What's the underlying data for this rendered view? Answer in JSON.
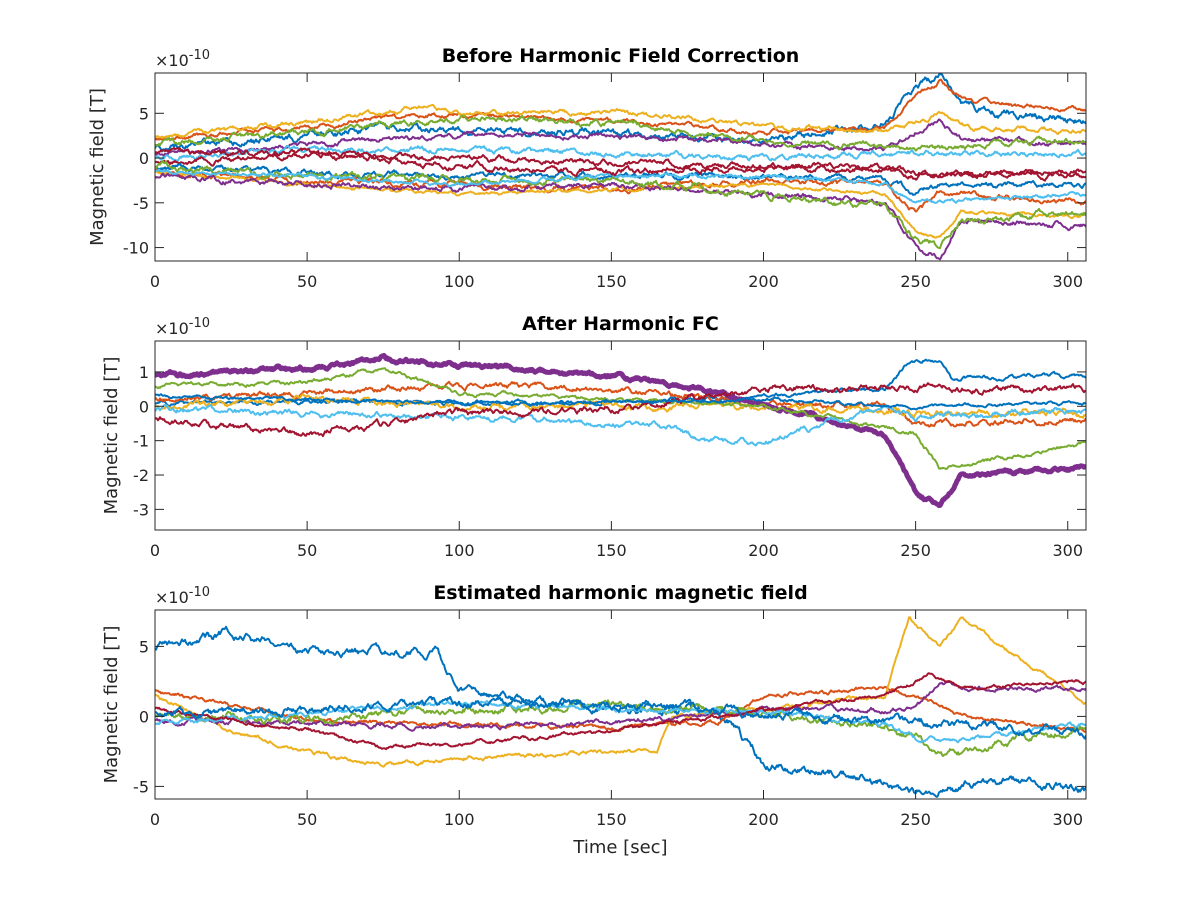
{
  "chart_data": [
    {
      "type": "line",
      "title": "Before Harmonic Field Correction",
      "xlabel": "",
      "ylabel": "Magnetic field [T]",
      "exponent_label": "×10",
      "exponent_power": "-10",
      "xlim": [
        0,
        306
      ],
      "ylim": [
        -11.5,
        9.5
      ],
      "xticks": [
        0,
        50,
        100,
        150,
        200,
        250,
        300
      ],
      "yticks": [
        -10,
        -5,
        0,
        5
      ],
      "grid": false,
      "noise": 0.35,
      "colors": [
        "#0072BD",
        "#D95319",
        "#EDB120",
        "#7E2F8E",
        "#77AC30",
        "#4DBEEE",
        "#A2142F"
      ],
      "series": [
        {
          "x": [
            0,
            50,
            75,
            100,
            150,
            180,
            200,
            240,
            250,
            258,
            265,
            280,
            306
          ],
          "values": [
            1,
            2.5,
            3.5,
            3.2,
            2.8,
            2.2,
            2,
            4,
            8,
            9,
            6,
            5,
            4
          ]
        },
        {
          "x": [
            0,
            50,
            75,
            100,
            150,
            180,
            200,
            240,
            250,
            258,
            265,
            280,
            306
          ],
          "values": [
            2,
            3.5,
            4.5,
            4.8,
            4.2,
            3.5,
            2.8,
            3.5,
            7,
            8.5,
            6.5,
            6,
            5.5
          ]
        },
        {
          "x": [
            0,
            50,
            90,
            100,
            150,
            180,
            200,
            240,
            250,
            258,
            265,
            306
          ],
          "values": [
            2.3,
            4,
            6,
            5,
            5.2,
            4.2,
            3.5,
            3,
            4,
            5,
            3.5,
            3
          ]
        },
        {
          "x": [
            0,
            50,
            100,
            150,
            200,
            240,
            250,
            258,
            265,
            306
          ],
          "values": [
            0.5,
            1.5,
            2.5,
            2.5,
            1.5,
            1,
            3,
            4,
            2,
            1.5
          ]
        },
        {
          "x": [
            0,
            50,
            100,
            150,
            200,
            240,
            250,
            306
          ],
          "values": [
            1.5,
            3,
            4.5,
            4,
            2,
            1.5,
            1,
            2
          ]
        },
        {
          "x": [
            0,
            50,
            100,
            150,
            200,
            240,
            250,
            306
          ],
          "values": [
            0,
            1,
            1,
            0.5,
            0,
            0.5,
            0.5,
            0.5
          ]
        },
        {
          "x": [
            0,
            50,
            100,
            150,
            200,
            250,
            306
          ],
          "values": [
            -0.5,
            0.5,
            0,
            -0.5,
            -1,
            -1.5,
            -2
          ]
        },
        {
          "x": [
            0,
            50,
            100,
            150,
            200,
            240,
            250,
            258,
            306
          ],
          "values": [
            -1,
            -1.5,
            -2,
            -2,
            -2,
            -2.5,
            -4,
            -3,
            -3
          ]
        },
        {
          "x": [
            0,
            50,
            100,
            150,
            200,
            240,
            250,
            258,
            306
          ],
          "values": [
            -1.5,
            -2.5,
            -3,
            -3.5,
            -2.5,
            -3,
            -6,
            -4,
            -5
          ]
        },
        {
          "x": [
            0,
            50,
            100,
            150,
            200,
            240,
            250,
            258,
            265,
            306
          ],
          "values": [
            -1.5,
            -3,
            -4,
            -3.5,
            -3,
            -4,
            -8,
            -9,
            -6,
            -6.5
          ]
        },
        {
          "x": [
            0,
            50,
            100,
            150,
            200,
            240,
            250,
            258,
            265,
            306
          ],
          "values": [
            -2,
            -3,
            -3.5,
            -3,
            -4,
            -5,
            -10,
            -11,
            -7,
            -7.5
          ]
        },
        {
          "x": [
            0,
            50,
            100,
            150,
            200,
            240,
            250,
            258,
            265,
            306
          ],
          "values": [
            -1,
            -2,
            -2.5,
            -2.5,
            -4,
            -5.5,
            -9,
            -10,
            -7,
            -6
          ]
        },
        {
          "x": [
            0,
            50,
            100,
            150,
            200,
            240,
            250,
            306
          ],
          "values": [
            -1.5,
            -2,
            -3,
            -2,
            -2,
            -3,
            -5,
            -4
          ]
        },
        {
          "x": [
            0,
            50,
            100,
            150,
            200,
            240,
            250,
            306
          ],
          "values": [
            0.5,
            0.5,
            -1,
            -1.5,
            -1,
            -1,
            -2,
            -1.5
          ]
        }
      ]
    },
    {
      "type": "line",
      "title": "After Harmonic FC",
      "xlabel": "",
      "ylabel": "Magnetic field [T]",
      "exponent_label": "×10",
      "exponent_power": "-10",
      "xlim": [
        0,
        306
      ],
      "ylim": [
        -3.6,
        1.9
      ],
      "xticks": [
        0,
        50,
        100,
        150,
        200,
        250,
        300
      ],
      "yticks": [
        -3,
        -2,
        -1,
        0,
        1
      ],
      "grid": false,
      "noise": 0.08,
      "colors": [
        "#0072BD",
        "#D95319",
        "#EDB120",
        "#7E2F8E",
        "#77AC30",
        "#4DBEEE",
        "#A2142F"
      ],
      "series": [
        {
          "x": [
            0,
            50,
            100,
            150,
            200,
            240,
            248,
            258,
            262,
            306
          ],
          "values": [
            0.1,
            0.1,
            0.1,
            0.1,
            0.3,
            0.5,
            1.3,
            1.4,
            0.8,
            0.9
          ]
        },
        {
          "x": [
            0,
            50,
            100,
            150,
            200,
            240,
            250,
            306
          ],
          "values": [
            0.2,
            0.4,
            0.6,
            0.5,
            0.1,
            0,
            -0.5,
            -0.4
          ]
        },
        {
          "x": [
            0,
            50,
            100,
            150,
            200,
            250,
            306
          ],
          "values": [
            0,
            0.2,
            0,
            0,
            0,
            -0.2,
            -0.2
          ]
        },
        {
          "x": [
            0,
            50,
            75,
            100,
            150,
            180,
            200,
            240,
            250,
            258,
            265,
            306
          ],
          "values": [
            0.9,
            1.1,
            1.4,
            1.2,
            0.9,
            0.5,
            0,
            -0.8,
            -2.5,
            -2.9,
            -2,
            -1.8
          ]
        },
        {
          "x": [
            0,
            50,
            75,
            100,
            150,
            200,
            250,
            258,
            306
          ],
          "values": [
            0.6,
            0.7,
            1.1,
            0.4,
            0.2,
            0,
            -0.8,
            -1.8,
            -1.1
          ]
        },
        {
          "x": [
            0,
            50,
            100,
            150,
            170,
            180,
            200,
            240,
            250,
            306
          ],
          "values": [
            -0.1,
            -0.2,
            -0.3,
            -0.5,
            -0.6,
            -1.0,
            -1.0,
            0,
            -0.3,
            -0.1
          ]
        },
        {
          "x": [
            0,
            50,
            100,
            150,
            200,
            250,
            306
          ],
          "values": [
            -0.4,
            -0.8,
            -0.2,
            -0.1,
            0.5,
            0.5,
            0.5
          ]
        },
        {
          "x": [
            0,
            50,
            100,
            150,
            200,
            250,
            306
          ],
          "values": [
            0.3,
            0.2,
            0.1,
            0.1,
            0.2,
            0,
            0.1
          ]
        }
      ]
    },
    {
      "type": "line",
      "title": "Estimated harmonic magnetic field",
      "xlabel": "Time [sec]",
      "ylabel": "Magnetic field [T]",
      "exponent_label": "×10",
      "exponent_power": "-10",
      "xlim": [
        0,
        306
      ],
      "ylim": [
        -5.9,
        7.6
      ],
      "xticks": [
        0,
        50,
        100,
        150,
        200,
        250,
        300
      ],
      "yticks": [
        -5,
        0,
        5
      ],
      "grid": false,
      "noise": 0.25,
      "colors": [
        "#0072BD",
        "#D95319",
        "#EDB120",
        "#7E2F8E",
        "#77AC30",
        "#4DBEEE",
        "#A2142F"
      ],
      "series": [
        {
          "x": [
            0,
            25,
            50,
            75,
            92,
            100,
            120,
            150,
            180,
            190,
            200,
            230,
            250,
            280,
            306
          ],
          "values": [
            4.8,
            6,
            4.5,
            4.8,
            4.5,
            2,
            1,
            0.5,
            0.5,
            -0.5,
            -3.5,
            -4.2,
            -5.5,
            -4.5,
            -5.2
          ]
        },
        {
          "x": [
            0,
            50,
            100,
            150,
            185,
            200,
            240,
            255,
            265,
            306
          ],
          "values": [
            1.8,
            -0.3,
            -0.6,
            -0.8,
            -0.3,
            1.5,
            2,
            1,
            0,
            -1
          ]
        },
        {
          "x": [
            0,
            25,
            50,
            75,
            100,
            150,
            165,
            170,
            200,
            240,
            248,
            258,
            265,
            306
          ],
          "values": [
            1.5,
            -1,
            -2.5,
            -3.5,
            -3,
            -2.5,
            -2.5,
            0,
            0.5,
            1.5,
            7,
            5,
            7,
            1
          ]
        },
        {
          "x": [
            0,
            50,
            100,
            150,
            200,
            240,
            250,
            258,
            265,
            306
          ],
          "values": [
            -0.3,
            -0.5,
            -0.8,
            -0.5,
            0.5,
            0.5,
            0.5,
            2.5,
            2,
            2
          ]
        },
        {
          "x": [
            0,
            50,
            100,
            150,
            200,
            240,
            250,
            260,
            306
          ],
          "values": [
            0,
            -0.2,
            0.5,
            0.7,
            0.2,
            -0.8,
            -1.5,
            -2.8,
            -0.8
          ]
        },
        {
          "x": [
            0,
            50,
            100,
            150,
            200,
            240,
            250,
            260,
            306
          ],
          "values": [
            -0.5,
            0.2,
            1,
            0.5,
            0.3,
            -0.5,
            -1.5,
            -1.8,
            -0.5
          ]
        },
        {
          "x": [
            0,
            50,
            75,
            100,
            150,
            185,
            200,
            240,
            255,
            265,
            306
          ],
          "values": [
            0.5,
            -1,
            -2.2,
            -2,
            -1,
            0,
            0.5,
            1.5,
            3,
            2,
            2.5
          ]
        },
        {
          "x": [
            0,
            50,
            100,
            150,
            200,
            250,
            306
          ],
          "values": [
            0.2,
            0.5,
            1,
            0.8,
            0.3,
            -0.5,
            -1
          ]
        }
      ]
    }
  ]
}
